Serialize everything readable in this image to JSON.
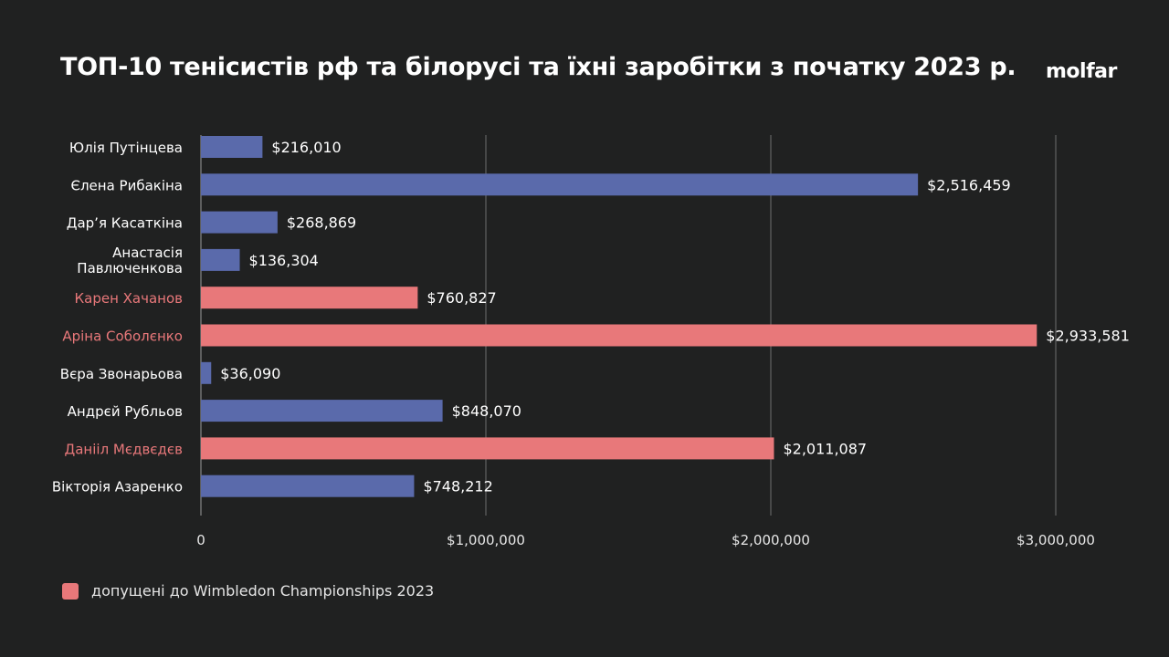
{
  "header": {
    "title": "ТОП-10 тенісистів рф та білорусі та їхні заробітки з початку 2023 р.",
    "logo": "molfar"
  },
  "colors": {
    "background": "#202121",
    "default_bar": "#5a6aab",
    "highlight_bar": "#e8787a",
    "highlight_label": "#e8787a",
    "grid": "#8a8a8a"
  },
  "chart_data": {
    "type": "bar",
    "orientation": "horizontal",
    "title": "ТОП-10 тенісистів рф та білорусі та їхні заробітки з початку 2023 р.",
    "categories": [
      "Юлія Путінцева",
      "Єлена Рибакіна",
      "Дар’я Касаткіна",
      "Анастасія Павлюченкова",
      "Карен Хачанов",
      "Аріна Соболєнко",
      "Вєра Звонарьова",
      "Андрєй Рубльов",
      "Данііл Мєдвєдєв",
      "Вікторія Азаренко"
    ],
    "values": [
      216010,
      2516459,
      268869,
      136304,
      760827,
      2933581,
      36090,
      848070,
      2011087,
      748212
    ],
    "value_labels": [
      "$216,010",
      "$2,516,459",
      "$268,869",
      "$136,304",
      "$760,827",
      "$2,933,581",
      "$36,090",
      "$848,070",
      "$2,011,087",
      "$748,212"
    ],
    "highlighted": [
      false,
      false,
      false,
      false,
      true,
      true,
      false,
      false,
      true,
      false
    ],
    "xlim": [
      0,
      3000000
    ],
    "xticks": [
      0,
      1000000,
      2000000,
      3000000
    ],
    "xtick_labels": [
      "0",
      "$1,000,000",
      "$2,000,000",
      "$3,000,000"
    ],
    "grid": true,
    "legend": {
      "label": "допущені до Wimbledon Championships 2023",
      "placement": "bottom-left"
    },
    "xlabel": "",
    "ylabel": ""
  }
}
